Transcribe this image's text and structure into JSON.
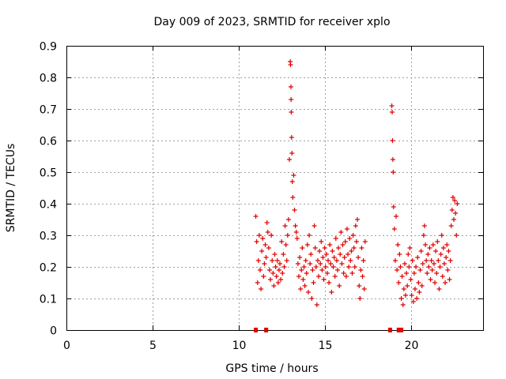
{
  "chart_data": {
    "type": "scatter",
    "title": "Day 009 of 2023, SRMTID for receiver xplo",
    "xlabel": "GPS time / hours",
    "ylabel": "SRMTID / TECUs",
    "xlim": [
      0,
      24.2
    ],
    "ylim": [
      0,
      0.9
    ],
    "xticks": [
      0,
      5,
      10,
      15,
      20
    ],
    "xtick_labels": [
      "0",
      "5",
      "10",
      "15",
      "20"
    ],
    "yticks": [
      0,
      0.1,
      0.2,
      0.3,
      0.4,
      0.5,
      0.6,
      0.7,
      0.8,
      0.9
    ],
    "ytick_labels": [
      "0",
      "0.1",
      "0.2",
      "0.3",
      "0.4",
      "0.5",
      "0.6",
      "0.7",
      "0.8",
      "0.9"
    ],
    "grid": true,
    "marker_color": "#e00000",
    "series": [
      {
        "name": "SRMTID",
        "points": [
          [
            11.0,
            0.36
          ],
          [
            11.05,
            0.28
          ],
          [
            11.1,
            0.15
          ],
          [
            11.15,
            0.22
          ],
          [
            11.2,
            0.3
          ],
          [
            11.25,
            0.19
          ],
          [
            11.3,
            0.13
          ],
          [
            11.35,
            0.25
          ],
          [
            11.4,
            0.29
          ],
          [
            11.45,
            0.17
          ],
          [
            11.5,
            0.21
          ],
          [
            11.55,
            0.27
          ],
          [
            11.6,
            0.23
          ],
          [
            11.65,
            0.34
          ],
          [
            11.7,
            0.31
          ],
          [
            11.75,
            0.26
          ],
          [
            11.8,
            0.19
          ],
          [
            11.85,
            0.16
          ],
          [
            11.9,
            0.3
          ],
          [
            11.95,
            0.22
          ],
          [
            12.0,
            0.18
          ],
          [
            12.05,
            0.14
          ],
          [
            12.1,
            0.24
          ],
          [
            12.15,
            0.2
          ],
          [
            12.2,
            0.17
          ],
          [
            12.25,
            0.22
          ],
          [
            12.3,
            0.15
          ],
          [
            12.35,
            0.19
          ],
          [
            12.4,
            0.21
          ],
          [
            12.45,
            0.16
          ],
          [
            12.5,
            0.28
          ],
          [
            12.55,
            0.18
          ],
          [
            12.6,
            0.24
          ],
          [
            12.65,
            0.2
          ],
          [
            12.7,
            0.33
          ],
          [
            12.75,
            0.27
          ],
          [
            12.8,
            0.22
          ],
          [
            12.85,
            0.3
          ],
          [
            12.9,
            0.35
          ],
          [
            12.95,
            0.54
          ],
          [
            13.0,
            0.85
          ],
          [
            13.02,
            0.84
          ],
          [
            13.04,
            0.77
          ],
          [
            13.05,
            0.73
          ],
          [
            13.06,
            0.69
          ],
          [
            13.08,
            0.61
          ],
          [
            13.1,
            0.56
          ],
          [
            13.12,
            0.47
          ],
          [
            13.15,
            0.42
          ],
          [
            13.2,
            0.49
          ],
          [
            13.25,
            0.38
          ],
          [
            13.3,
            0.33
          ],
          [
            13.35,
            0.31
          ],
          [
            13.4,
            0.29
          ],
          [
            13.45,
            0.21
          ],
          [
            13.5,
            0.17
          ],
          [
            13.55,
            0.23
          ],
          [
            13.6,
            0.13
          ],
          [
            13.65,
            0.19
          ],
          [
            13.7,
            0.26
          ],
          [
            13.75,
            0.16
          ],
          [
            13.8,
            0.2
          ],
          [
            13.85,
            0.14
          ],
          [
            13.9,
            0.22
          ],
          [
            13.95,
            0.18
          ],
          [
            14.0,
            0.27
          ],
          [
            14.05,
            0.12
          ],
          [
            14.1,
            0.3
          ],
          [
            14.15,
            0.21
          ],
          [
            14.2,
            0.24
          ],
          [
            14.25,
            0.1
          ],
          [
            14.3,
            0.19
          ],
          [
            14.35,
            0.15
          ],
          [
            14.4,
            0.33
          ],
          [
            14.45,
            0.26
          ],
          [
            14.5,
            0.2
          ],
          [
            14.55,
            0.08
          ],
          [
            14.6,
            0.22
          ],
          [
            14.65,
            0.17
          ],
          [
            14.7,
            0.25
          ],
          [
            14.75,
            0.21
          ],
          [
            14.8,
            0.28
          ],
          [
            14.85,
            0.19
          ],
          [
            14.9,
            0.23
          ],
          [
            14.95,
            0.16
          ],
          [
            15.0,
            0.26
          ],
          [
            15.05,
            0.2
          ],
          [
            15.1,
            0.24
          ],
          [
            15.15,
            0.18
          ],
          [
            15.2,
            0.22
          ],
          [
            15.25,
            0.15
          ],
          [
            15.3,
            0.27
          ],
          [
            15.35,
            0.21
          ],
          [
            15.4,
            0.12
          ],
          [
            15.45,
            0.25
          ],
          [
            15.5,
            0.2
          ],
          [
            15.55,
            0.23
          ],
          [
            15.6,
            0.17
          ],
          [
            15.65,
            0.29
          ],
          [
            15.7,
            0.22
          ],
          [
            15.75,
            0.19
          ],
          [
            15.8,
            0.26
          ],
          [
            15.85,
            0.14
          ],
          [
            15.9,
            0.24
          ],
          [
            15.95,
            0.31
          ],
          [
            16.0,
            0.21
          ],
          [
            16.05,
            0.27
          ],
          [
            16.1,
            0.18
          ],
          [
            16.15,
            0.23
          ],
          [
            16.2,
            0.28
          ],
          [
            16.25,
            0.17
          ],
          [
            16.3,
            0.32
          ],
          [
            16.35,
            0.24
          ],
          [
            16.4,
            0.2
          ],
          [
            16.45,
            0.29
          ],
          [
            16.5,
            0.22
          ],
          [
            16.55,
            0.25
          ],
          [
            16.6,
            0.18
          ],
          [
            16.65,
            0.3
          ],
          [
            16.7,
            0.26
          ],
          [
            16.75,
            0.2
          ],
          [
            16.8,
            0.33
          ],
          [
            16.85,
            0.28
          ],
          [
            16.9,
            0.35
          ],
          [
            16.95,
            0.23
          ],
          [
            17.0,
            0.14
          ],
          [
            17.05,
            0.1
          ],
          [
            17.1,
            0.19
          ],
          [
            17.15,
            0.26
          ],
          [
            17.2,
            0.17
          ],
          [
            17.25,
            0.22
          ],
          [
            17.3,
            0.13
          ],
          [
            17.35,
            0.28
          ],
          [
            18.9,
            0.71
          ],
          [
            18.92,
            0.69
          ],
          [
            18.94,
            0.6
          ],
          [
            18.96,
            0.54
          ],
          [
            18.98,
            0.5
          ],
          [
            19.0,
            0.39
          ],
          [
            19.05,
            0.32
          ],
          [
            19.1,
            0.22
          ],
          [
            19.15,
            0.36
          ],
          [
            19.2,
            0.19
          ],
          [
            19.25,
            0.27
          ],
          [
            19.3,
            0.15
          ],
          [
            19.35,
            0.24
          ],
          [
            19.4,
            0.2
          ],
          [
            19.45,
            0.1
          ],
          [
            19.5,
            0.17
          ],
          [
            19.55,
            0.08
          ],
          [
            19.6,
            0.13
          ],
          [
            19.65,
            0.21
          ],
          [
            19.7,
            0.11
          ],
          [
            19.75,
            0.18
          ],
          [
            19.8,
            0.14
          ],
          [
            19.85,
            0.24
          ],
          [
            19.9,
            0.2
          ],
          [
            19.95,
            0.26
          ],
          [
            20.0,
            0.16
          ],
          [
            20.05,
            0.11
          ],
          [
            20.1,
            0.22
          ],
          [
            20.15,
            0.09
          ],
          [
            20.2,
            0.18
          ],
          [
            20.25,
            0.13
          ],
          [
            20.3,
            0.2
          ],
          [
            20.35,
            0.1
          ],
          [
            20.4,
            0.23
          ],
          [
            20.45,
            0.15
          ],
          [
            20.5,
            0.12
          ],
          [
            20.55,
            0.19
          ],
          [
            20.6,
            0.25
          ],
          [
            20.65,
            0.14
          ],
          [
            20.7,
            0.21
          ],
          [
            20.75,
            0.3
          ],
          [
            20.8,
            0.33
          ],
          [
            20.85,
            0.27
          ],
          [
            20.9,
            0.22
          ],
          [
            20.95,
            0.18
          ],
          [
            21.0,
            0.24
          ],
          [
            21.05,
            0.2
          ],
          [
            21.1,
            0.26
          ],
          [
            21.15,
            0.16
          ],
          [
            21.2,
            0.22
          ],
          [
            21.25,
            0.19
          ],
          [
            21.3,
            0.27
          ],
          [
            21.35,
            0.21
          ],
          [
            21.4,
            0.15
          ],
          [
            21.45,
            0.25
          ],
          [
            21.5,
            0.18
          ],
          [
            21.55,
            0.28
          ],
          [
            21.6,
            0.22
          ],
          [
            21.65,
            0.13
          ],
          [
            21.7,
            0.2
          ],
          [
            21.75,
            0.24
          ],
          [
            21.8,
            0.3
          ],
          [
            21.85,
            0.17
          ],
          [
            21.9,
            0.26
          ],
          [
            21.95,
            0.21
          ],
          [
            22.0,
            0.15
          ],
          [
            22.05,
            0.23
          ],
          [
            22.1,
            0.27
          ],
          [
            22.15,
            0.19
          ],
          [
            22.2,
            0.25
          ],
          [
            22.25,
            0.16
          ],
          [
            22.3,
            0.22
          ],
          [
            22.35,
            0.33
          ],
          [
            22.4,
            0.38
          ],
          [
            22.45,
            0.42
          ],
          [
            22.5,
            0.35
          ],
          [
            22.55,
            0.41
          ],
          [
            22.6,
            0.37
          ],
          [
            22.65,
            0.3
          ],
          [
            22.7,
            0.4
          ]
        ]
      }
    ],
    "gap_markers": [
      [
        11.0,
        0
      ],
      [
        11.6,
        0
      ],
      [
        18.8,
        0
      ],
      [
        19.3,
        0
      ],
      [
        19.45,
        0
      ]
    ]
  }
}
